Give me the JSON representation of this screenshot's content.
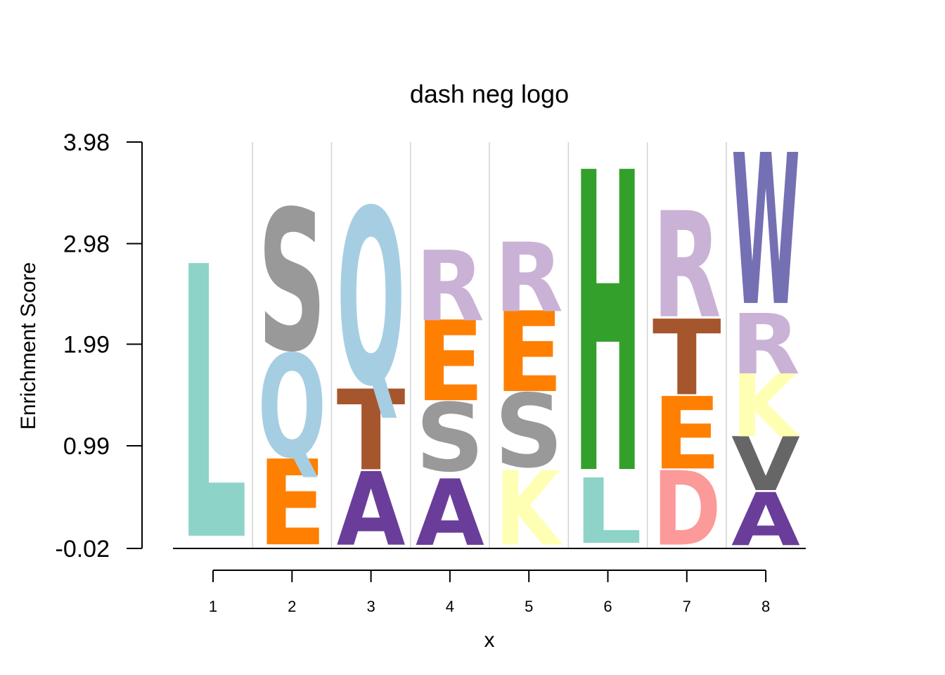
{
  "chart_data": {
    "type": "sequence-logo",
    "title": "dash neg logo",
    "xlabel": "x",
    "ylabel": "Enrichment Score",
    "x_ticks": [
      "1",
      "2",
      "3",
      "4",
      "5",
      "6",
      "7",
      "8"
    ],
    "y_ticks": [
      "3.98",
      "2.98",
      "1.99",
      "0.99",
      "-0.02"
    ],
    "y_tick_values": [
      3.98,
      2.98,
      1.99,
      0.99,
      -0.02
    ],
    "ylim": [
      -0.02,
      3.98
    ],
    "positions": [
      {
        "x": 1,
        "letters": [
          {
            "letter": "L",
            "bottom": 0.04,
            "top": 2.71,
            "color": "#8DD3C7"
          }
        ]
      },
      {
        "x": 2,
        "letters": [
          {
            "letter": "E",
            "bottom": 0.0,
            "top": 0.84,
            "color": "#FF7F00"
          },
          {
            "letter": "Q",
            "bottom": 0.86,
            "top": 1.87,
            "color": "#A6CEE3"
          },
          {
            "letter": "S",
            "bottom": 1.91,
            "top": 3.29,
            "color": "#999999"
          }
        ]
      },
      {
        "x": 3,
        "letters": [
          {
            "letter": "A",
            "bottom": 0.0,
            "top": 0.72,
            "color": "#6A3D9A"
          },
          {
            "letter": "T",
            "bottom": 0.74,
            "top": 1.53,
            "color": "#A6562C"
          },
          {
            "letter": "Q",
            "bottom": 1.57,
            "top": 3.29,
            "color": "#A6CEE3"
          }
        ]
      },
      {
        "x": 4,
        "letters": [
          {
            "letter": "A",
            "bottom": 0.0,
            "top": 0.65,
            "color": "#6A3D9A"
          },
          {
            "letter": "S",
            "bottom": 0.73,
            "top": 1.4,
            "color": "#999999"
          },
          {
            "letter": "E",
            "bottom": 1.42,
            "top": 2.21,
            "color": "#FF7F00"
          },
          {
            "letter": "R",
            "bottom": 2.21,
            "top": 2.9,
            "color": "#CAB2D6"
          }
        ]
      },
      {
        "x": 5,
        "letters": [
          {
            "letter": "K",
            "bottom": 0.0,
            "top": 0.73,
            "color": "#FFFFB3"
          },
          {
            "letter": "S",
            "bottom": 0.77,
            "top": 1.49,
            "color": "#999999"
          },
          {
            "letter": "E",
            "bottom": 1.51,
            "top": 2.3,
            "color": "#FF7F00"
          },
          {
            "letter": "R",
            "bottom": 2.3,
            "top": 2.98,
            "color": "#CAB2D6"
          }
        ]
      },
      {
        "x": 6,
        "letters": [
          {
            "letter": "L",
            "bottom": 0.02,
            "top": 0.66,
            "color": "#8DD3C7"
          },
          {
            "letter": "H",
            "bottom": 0.69,
            "top": 3.63,
            "color": "#33A02C"
          }
        ]
      },
      {
        "x": 7,
        "letters": [
          {
            "letter": "D",
            "bottom": 0.0,
            "top": 0.73,
            "color": "#FB9A99"
          },
          {
            "letter": "E",
            "bottom": 0.75,
            "top": 1.46,
            "color": "#FF7F00"
          },
          {
            "letter": "T",
            "bottom": 1.48,
            "top": 2.22,
            "color": "#A6562C"
          },
          {
            "letter": "R",
            "bottom": 2.24,
            "top": 3.28,
            "color": "#CAB2D6"
          }
        ]
      },
      {
        "x": 8,
        "letters": [
          {
            "letter": "A",
            "bottom": 0.0,
            "top": 0.52,
            "color": "#6A3D9A"
          },
          {
            "letter": "V",
            "bottom": 0.54,
            "top": 1.07,
            "color": "#666666"
          },
          {
            "letter": "K",
            "bottom": 1.07,
            "top": 1.69,
            "color": "#FFFFB3"
          },
          {
            "letter": "R",
            "bottom": 1.69,
            "top": 2.28,
            "color": "#CAB2D6"
          },
          {
            "letter": "W",
            "bottom": 2.36,
            "top": 3.84,
            "color": "#7570B3"
          }
        ]
      }
    ]
  }
}
